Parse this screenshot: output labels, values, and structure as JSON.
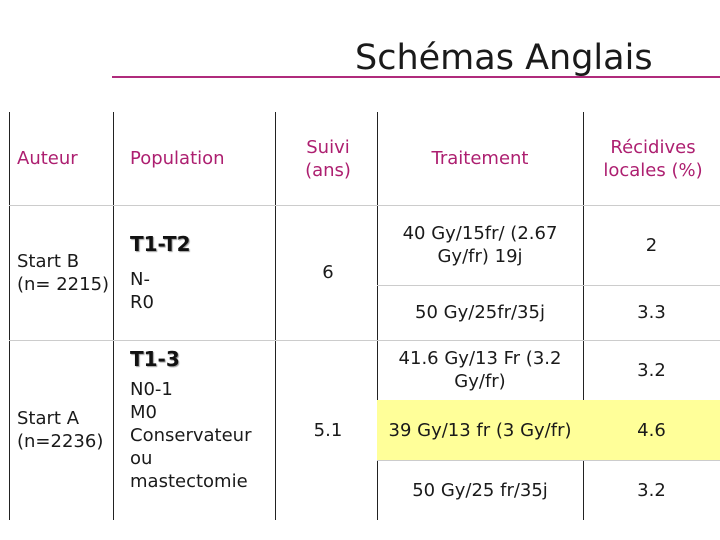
{
  "title": "Schémas Anglais",
  "headers": {
    "author": "Auteur",
    "population": "Population",
    "followup": "Suivi (ans)",
    "treatment": "Traitement",
    "recurrence": "Récidives locales (%)"
  },
  "groups": [
    {
      "author": "Start B (n= 2215)",
      "subtitle": "T1-T2",
      "population": "N-\nR0",
      "followup": "6",
      "rows": [
        {
          "treatment": "40 Gy/15fr/ (2.67 Gy/fr) 19j",
          "recurrence": "2"
        },
        {
          "treatment": "50 Gy/25fr/35j",
          "recurrence": "3.3"
        }
      ]
    },
    {
      "author": "Start A (n=2236)",
      "subtitle": "T1-3",
      "population": "N0-1\nM0\nConservateur\nou\nmastectomie",
      "followup": "5.1",
      "rows": [
        {
          "treatment": "41.6 Gy/13 Fr (3.2 Gy/fr)",
          "recurrence": "3.2"
        },
        {
          "treatment": "39 Gy/13 fr (3 Gy/fr)",
          "recurrence": "4.6",
          "highlighted": true
        },
        {
          "treatment": "50 Gy/25 fr/35j",
          "recurrence": "3.2"
        }
      ]
    }
  ],
  "colors": {
    "header": "#ad1f70",
    "highlight": "#ffff99",
    "title_rule": "#b02b7c"
  }
}
